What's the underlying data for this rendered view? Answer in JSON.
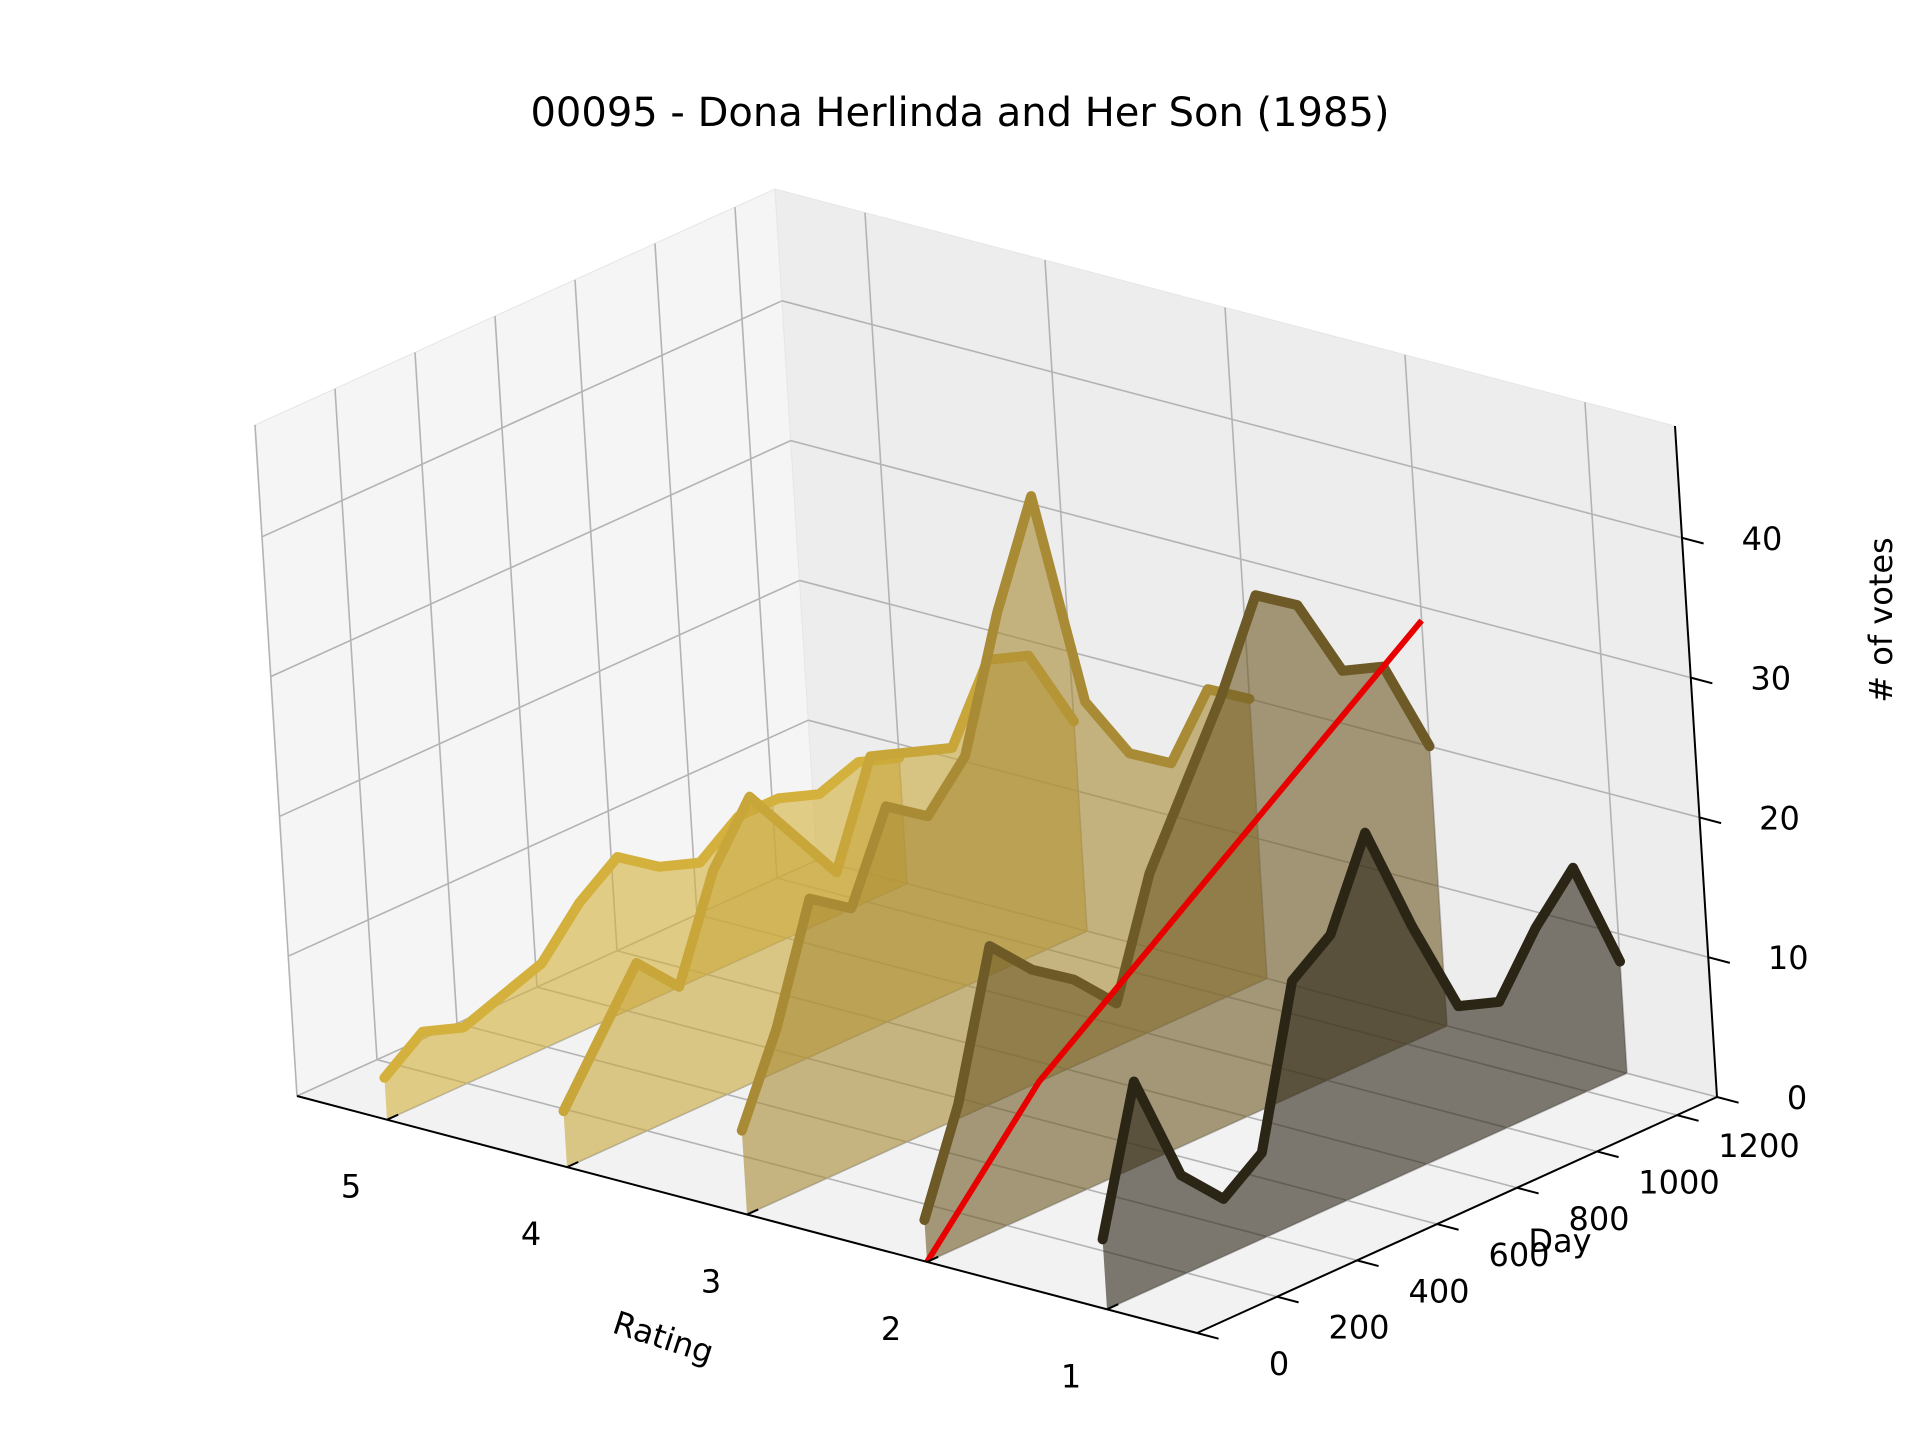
{
  "chart_data": {
    "type": "area",
    "title": "00095 - Dona Herlinda and Her Son (1985)",
    "xlabel": "Rating",
    "ylabel": "Day",
    "zlabel": "# of votes",
    "x_ticks": [
      "5",
      "4",
      "3",
      "2",
      "1"
    ],
    "y_ticks": [
      "0",
      "200",
      "400",
      "600",
      "800",
      "1000",
      "1200"
    ],
    "z_ticks": [
      "0",
      "10",
      "20",
      "30",
      "40"
    ],
    "xlim": [
      0.5,
      5.5
    ],
    "ylim": [
      0,
      1300
    ],
    "zlim": [
      0,
      48
    ],
    "grid": true,
    "x": [
      0,
      100,
      200,
      300,
      400,
      500,
      600,
      700,
      800,
      900,
      1000,
      1100,
      1200,
      1300
    ],
    "series": [
      {
        "rating": 5,
        "color": "#d4b13c",
        "values": [
          3,
          5,
          4,
          5,
          6,
          9,
          11,
          9,
          8,
          10,
          10,
          9,
          10,
          9
        ]
      },
      {
        "rating": 4,
        "color": "#c8a63a",
        "values": [
          4,
          8,
          12,
          9,
          16,
          20,
          16,
          12,
          19,
          18,
          17,
          22,
          21,
          15
        ]
      },
      {
        "rating": 3,
        "color": "#a88b34",
        "values": [
          6,
          12,
          20,
          18,
          24,
          22,
          25,
          34,
          41,
          25,
          20,
          18,
          22,
          20
        ]
      },
      {
        "rating": 2,
        "color": "#6e5a26",
        "values": [
          3,
          10,
          20,
          17,
          15,
          12,
          20,
          25,
          30,
          36,
          34,
          28,
          27,
          20
        ]
      },
      {
        "rating": 1,
        "color": "#2b2515",
        "values": [
          5,
          15,
          7,
          4,
          6,
          17,
          19,
          25,
          17,
          10,
          9,
          13,
          16,
          8
        ]
      }
    ],
    "cumulative_line": {
      "color": "#e80000",
      "x": [
        0,
        100,
        200,
        300,
        400,
        500,
        600,
        700,
        800,
        900,
        1000,
        1100,
        1200,
        1300
      ],
      "values": [
        0,
        3,
        6,
        9,
        11,
        13,
        15,
        17,
        19,
        21,
        23,
        25,
        27,
        29
      ]
    }
  }
}
